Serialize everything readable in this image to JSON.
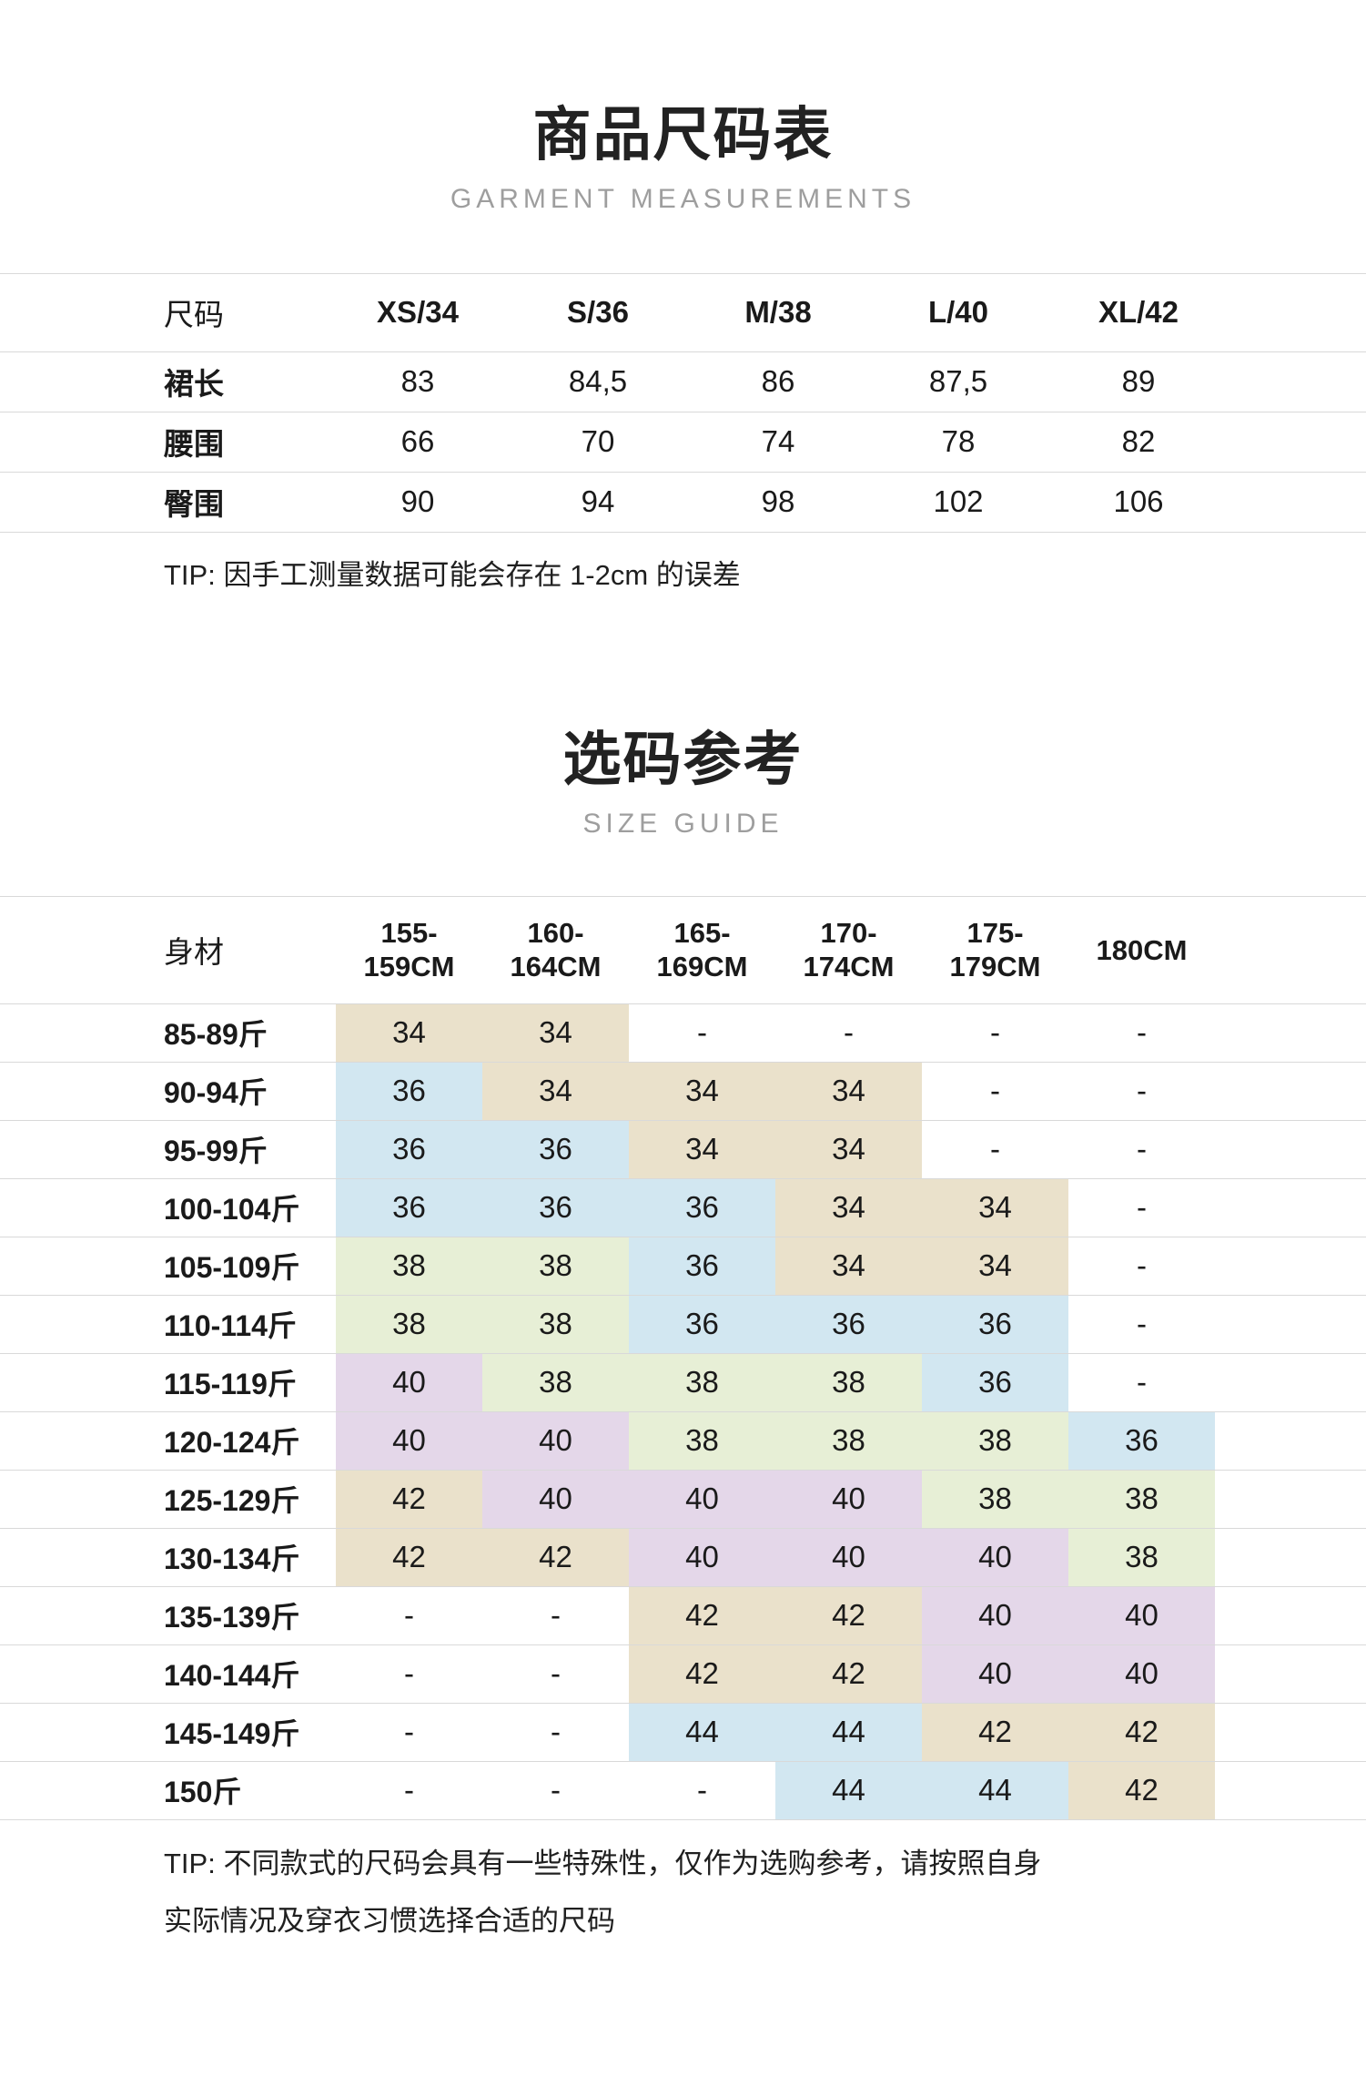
{
  "section1": {
    "title": "商品尺码表",
    "subtitle": "GARMENT MEASUREMENTS",
    "table": {
      "header": [
        "尺码",
        "XS/34",
        "S/36",
        "M/38",
        "L/40",
        "XL/42"
      ],
      "rows": [
        {
          "label": "裙长",
          "values": [
            "83",
            "84,5",
            "86",
            "87,5",
            "89"
          ]
        },
        {
          "label": "腰围",
          "values": [
            "66",
            "70",
            "74",
            "78",
            "82"
          ]
        },
        {
          "label": "臀围",
          "values": [
            "90",
            "94",
            "98",
            "102",
            "106"
          ]
        }
      ]
    },
    "tip": "TIP: 因手工测量数据可能会存在 1-2cm 的误差"
  },
  "section2": {
    "title": "选码参考",
    "subtitle": "SIZE GUIDE",
    "table": {
      "header_label": "身材",
      "columns": [
        "155-\n159CM",
        "160-\n164CM",
        "165-\n169CM",
        "170-\n174CM",
        "175-\n179CM",
        "180CM"
      ],
      "rows": [
        {
          "label": "85-89斤",
          "values": [
            "34",
            "34",
            "-",
            "-",
            "-",
            "-"
          ]
        },
        {
          "label": "90-94斤",
          "values": [
            "36",
            "34",
            "34",
            "34",
            "-",
            "-"
          ]
        },
        {
          "label": "95-99斤",
          "values": [
            "36",
            "36",
            "34",
            "34",
            "-",
            "-"
          ]
        },
        {
          "label": "100-104斤",
          "values": [
            "36",
            "36",
            "36",
            "34",
            "34",
            "-"
          ]
        },
        {
          "label": "105-109斤",
          "values": [
            "38",
            "38",
            "36",
            "34",
            "34",
            "-"
          ]
        },
        {
          "label": "110-114斤",
          "values": [
            "38",
            "38",
            "36",
            "36",
            "36",
            "-"
          ]
        },
        {
          "label": "115-119斤",
          "values": [
            "40",
            "38",
            "38",
            "38",
            "36",
            "-"
          ]
        },
        {
          "label": "120-124斤",
          "values": [
            "40",
            "40",
            "38",
            "38",
            "38",
            "36"
          ]
        },
        {
          "label": "125-129斤",
          "values": [
            "42",
            "40",
            "40",
            "40",
            "38",
            "38"
          ]
        },
        {
          "label": "130-134斤",
          "values": [
            "42",
            "42",
            "40",
            "40",
            "40",
            "38"
          ]
        },
        {
          "label": "135-139斤",
          "values": [
            "-",
            "-",
            "42",
            "42",
            "40",
            "40"
          ]
        },
        {
          "label": "140-144斤",
          "values": [
            "-",
            "-",
            "42",
            "42",
            "40",
            "40"
          ]
        },
        {
          "label": "145-149斤",
          "values": [
            "-",
            "-",
            "44",
            "44",
            "42",
            "42"
          ]
        },
        {
          "label": "150斤",
          "values": [
            "-",
            "-",
            "-",
            "44",
            "44",
            "42"
          ]
        }
      ]
    },
    "tip": "TIP: 不同款式的尺码会具有一些特殊性，仅作为选购参考，请按照自身\n实际情况及穿衣习惯选择合适的尺码"
  },
  "colors": {
    "line": "#d9d9d9",
    "subtitle_text": "#9e9e9e",
    "body_text": "#1a1a1a",
    "cells": {
      "34": "#eae1cb",
      "36": "#d2e7f1",
      "38": "#e7efd6",
      "40": "#e4d7e9",
      "42": "#eae1cb",
      "44": "#d2e7f1"
    }
  }
}
